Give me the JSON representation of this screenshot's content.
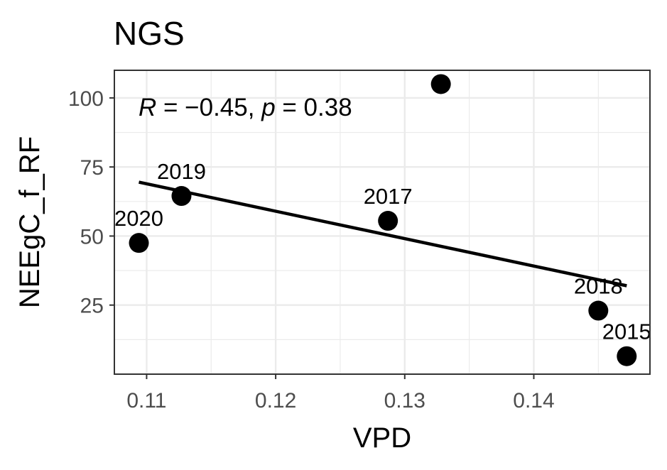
{
  "chart_data": {
    "type": "scatter",
    "title": "NGS",
    "xlabel": "VPD",
    "ylabel": "NEEgC_f_RF",
    "xlim": [
      0.1075,
      0.149
    ],
    "ylim": [
      0,
      110
    ],
    "x_ticks": [
      0.11,
      0.12,
      0.13,
      0.14
    ],
    "x_tick_labels": [
      "0.11",
      "0.12",
      "0.13",
      "0.14"
    ],
    "y_ticks": [
      25,
      50,
      75,
      100
    ],
    "y_tick_labels": [
      "25",
      "50",
      "75",
      "100"
    ],
    "grid": true,
    "points": [
      {
        "x": 0.1094,
        "y": 47.5,
        "label": "2020"
      },
      {
        "x": 0.1127,
        "y": 64.5,
        "label": "2019"
      },
      {
        "x": 0.1287,
        "y": 55.5,
        "label": "2017"
      },
      {
        "x": 0.1328,
        "y": 105.0,
        "label": ""
      },
      {
        "x": 0.145,
        "y": 23.0,
        "label": "2018"
      },
      {
        "x": 0.1472,
        "y": 6.5,
        "label": "2015"
      }
    ],
    "trend_line": {
      "x": [
        0.1094,
        0.1472
      ],
      "y": [
        69.5,
        32.0
      ]
    },
    "annotation": {
      "parts": [
        {
          "text": "R",
          "italic": true
        },
        {
          "text": " = −0.45, ",
          "italic": false
        },
        {
          "text": "p",
          "italic": true
        },
        {
          "text": " = 0.38",
          "italic": false
        }
      ]
    },
    "colors": {
      "points": "#000000",
      "line": "#000000",
      "grid": "#ebebeb",
      "panel_border": "#333333"
    }
  }
}
